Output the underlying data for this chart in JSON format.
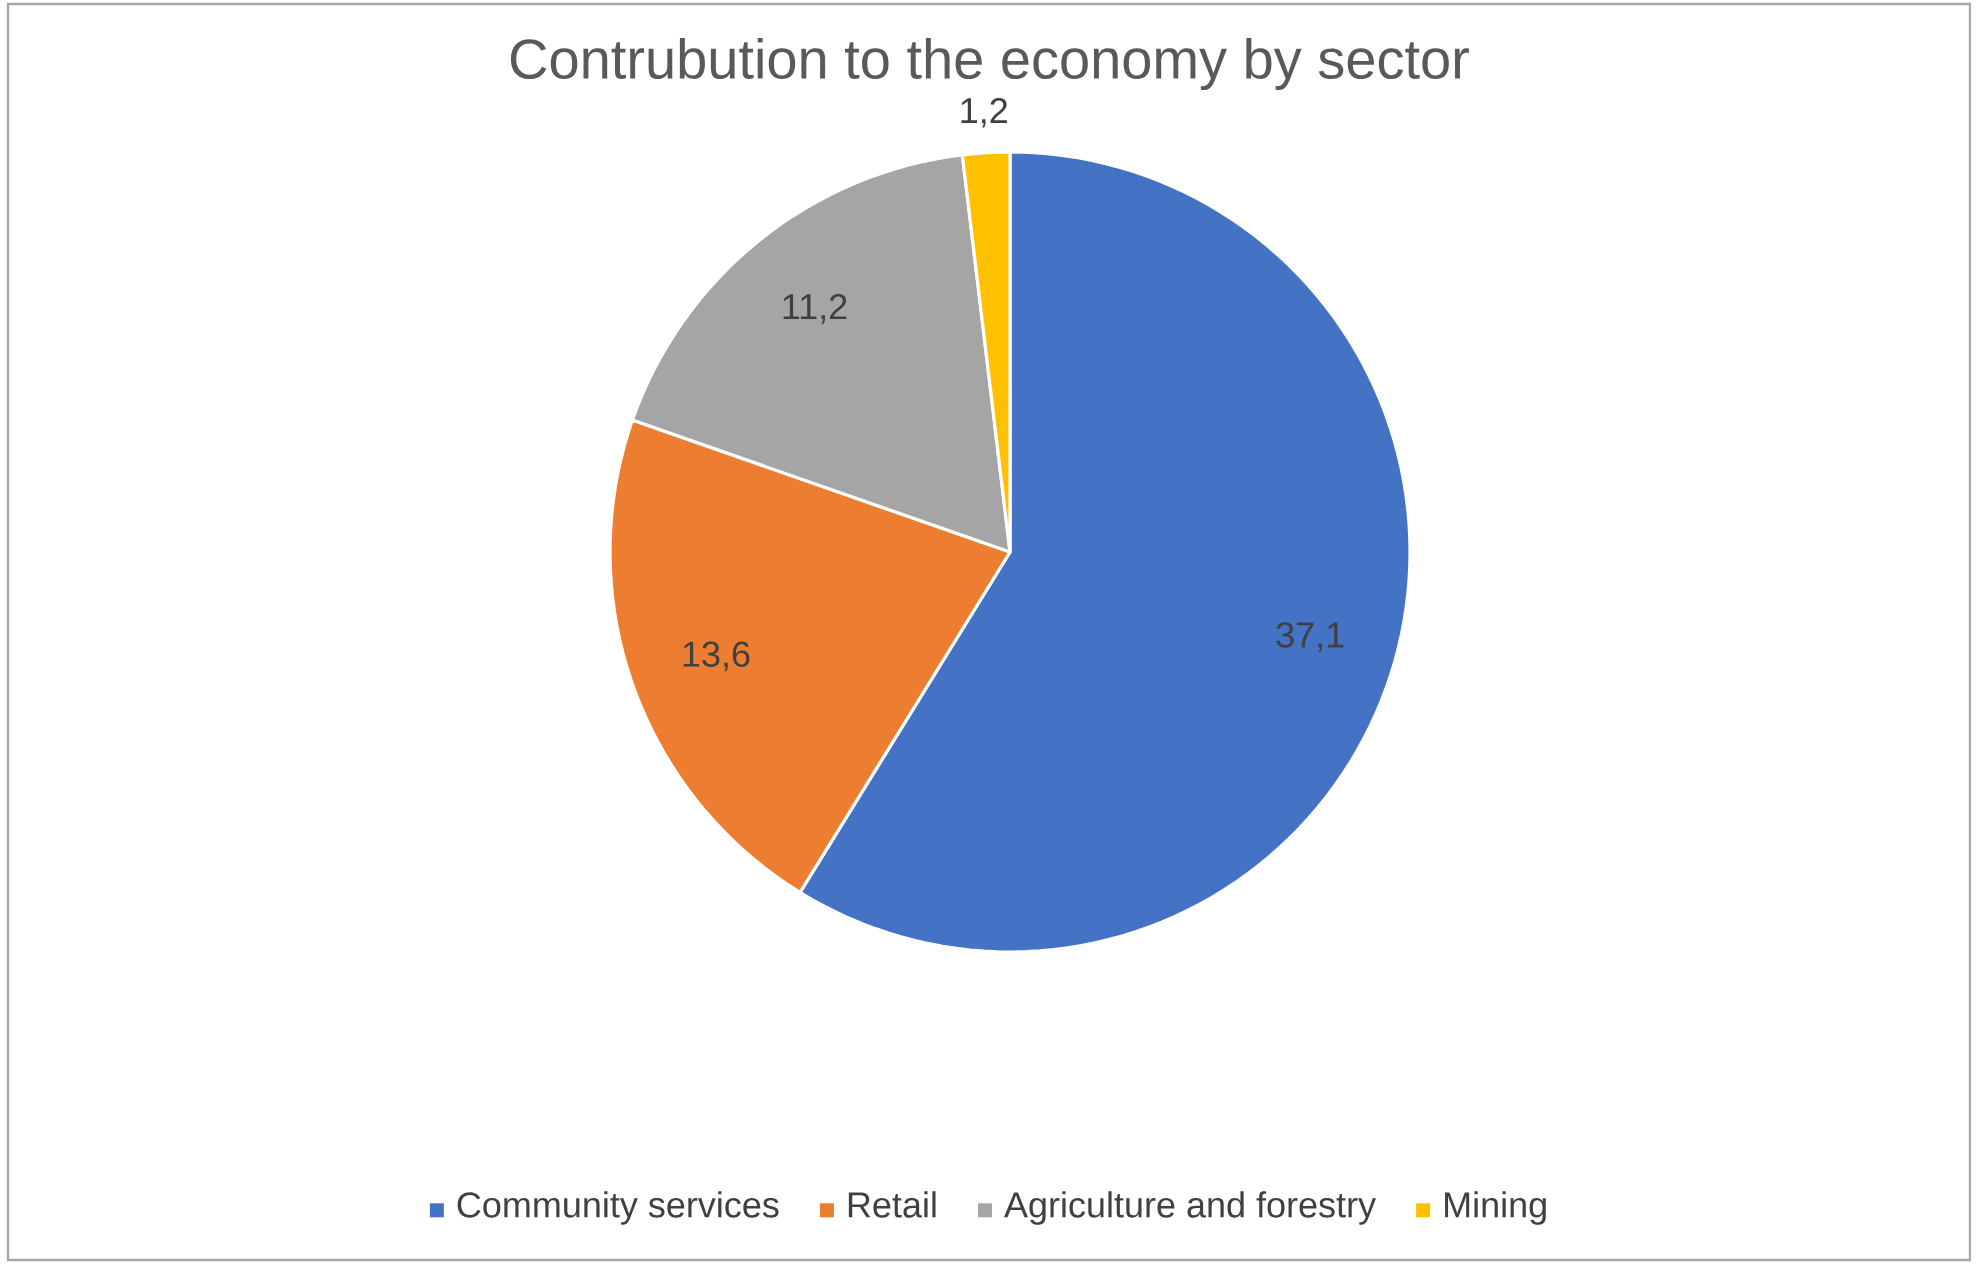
{
  "chart_data": {
    "type": "pie",
    "title": "Contrubution to the economy by sector",
    "categories": [
      "Community services",
      "Retail",
      "Agriculture and forestry",
      "Mining"
    ],
    "values": [
      37.1,
      13.6,
      11.2,
      1.2
    ],
    "value_labels": [
      "37,1",
      "13,6",
      "11,2",
      "1,2"
    ],
    "colors": [
      "#4472c4",
      "#ed7d31",
      "#a5a5a5",
      "#ffc000"
    ],
    "legend": "bottom"
  }
}
